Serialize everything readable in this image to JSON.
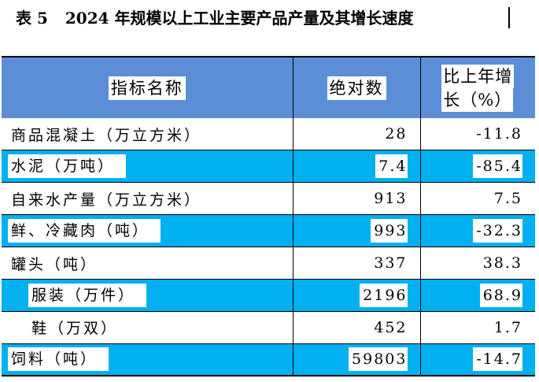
{
  "title": {
    "table_no": "表 5",
    "text": "2024 年规模以上工业主要产品产量及其增长速度"
  },
  "table": {
    "headers": {
      "name": "指标名称",
      "value": "绝对数",
      "growth_line1": "比上年增",
      "growth_line2": "长（%）"
    },
    "rows": [
      {
        "name": "商品混凝土（万立方米）",
        "value": "28",
        "growth": "-11.8"
      },
      {
        "name": "水泥（万吨）",
        "value": "7.4",
        "growth": "-85.4"
      },
      {
        "name": "自来水产量（万立方米）",
        "value": "913",
        "growth": "7.5"
      },
      {
        "name": "鲜、冷藏肉（吨）",
        "value": "993",
        "growth": "-32.3"
      },
      {
        "name": "罐头（吨）",
        "value": "337",
        "growth": "38.3"
      },
      {
        "name": "服装（万件）",
        "value": "2196",
        "growth": "68.9"
      },
      {
        "name": "鞋（万双）",
        "value": "452",
        "growth": "1.7"
      },
      {
        "name": "饲料（吨）",
        "value": "59803",
        "growth": "-14.7"
      }
    ]
  },
  "colors": {
    "header_band": "#5b8ed6",
    "row_highlight": "#00b0f0"
  }
}
